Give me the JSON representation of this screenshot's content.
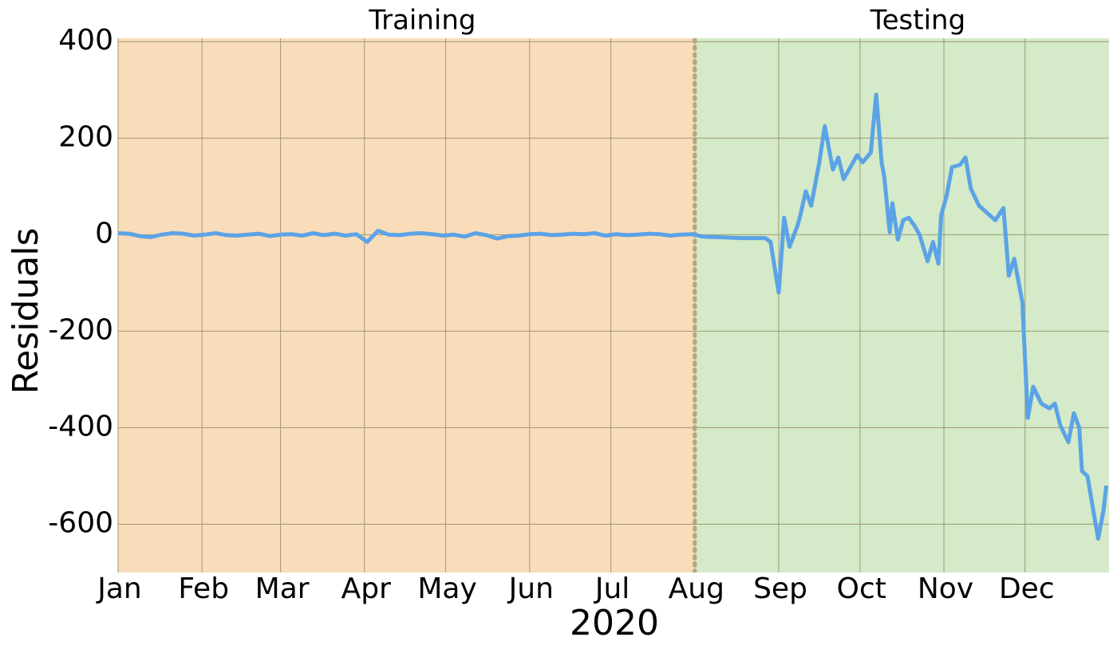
{
  "chart_data": {
    "type": "line",
    "xlabel": "2020",
    "ylabel": "Residuals",
    "xlim": [
      0,
      366
    ],
    "ylim": [
      -700,
      407
    ],
    "xticks": [
      {
        "value": 0,
        "label": "Jan"
      },
      {
        "value": 31,
        "label": "Feb"
      },
      {
        "value": 60,
        "label": "Mar"
      },
      {
        "value": 91,
        "label": "Apr"
      },
      {
        "value": 121,
        "label": "May"
      },
      {
        "value": 152,
        "label": "Jun"
      },
      {
        "value": 182,
        "label": "Jul"
      },
      {
        "value": 213,
        "label": "Aug"
      },
      {
        "value": 244,
        "label": "Sep"
      },
      {
        "value": 274,
        "label": "Oct"
      },
      {
        "value": 305,
        "label": "Nov"
      },
      {
        "value": 335,
        "label": "Dec"
      }
    ],
    "yticks": [
      400,
      200,
      0,
      -200,
      -400,
      -600
    ],
    "grid": true,
    "regions": [
      {
        "label": "Training",
        "range": [
          0,
          213
        ],
        "color": "#f9dcb9"
      },
      {
        "label": "Testing",
        "range": [
          213,
          366
        ],
        "color": "#d4eac8"
      }
    ],
    "split": 213,
    "series": [
      {
        "color": "#5ba3e6",
        "x": [
          0,
          4,
          8,
          12,
          16,
          20,
          24,
          28,
          32,
          36,
          40,
          44,
          48,
          52,
          56,
          60,
          64,
          68,
          72,
          76,
          80,
          84,
          88,
          92,
          96,
          100,
          104,
          108,
          112,
          116,
          120,
          124,
          128,
          132,
          136,
          140,
          144,
          148,
          152,
          156,
          160,
          164,
          168,
          172,
          176,
          180,
          184,
          188,
          192,
          196,
          200,
          204,
          208,
          212,
          216,
          221,
          230,
          239,
          241,
          244,
          246,
          248,
          251,
          252,
          254,
          256,
          259,
          261,
          264,
          266,
          268,
          273,
          275,
          278,
          280,
          282,
          283,
          285,
          286,
          288,
          290,
          292,
          294,
          296,
          299,
          301,
          303,
          304,
          306,
          308,
          311,
          313,
          315,
          318,
          321,
          324,
          327,
          329,
          331,
          334,
          336,
          338,
          341,
          344,
          346,
          348,
          351,
          353,
          355,
          356,
          358,
          362,
          364,
          365
        ],
        "values": [
          3,
          2,
          -3,
          -5,
          0,
          3,
          2,
          -2,
          0,
          3,
          -1,
          -2,
          0,
          2,
          -3,
          0,
          1,
          -2,
          3,
          -1,
          2,
          -2,
          1,
          -15,
          8,
          0,
          -1,
          2,
          3,
          1,
          -2,
          0,
          -4,
          3,
          -1,
          -8,
          -3,
          -2,
          1,
          2,
          -1,
          0,
          2,
          1,
          3,
          -2,
          1,
          -1,
          0,
          2,
          1,
          -2,
          0,
          1,
          -4,
          -5,
          -7,
          -7,
          -15,
          -120,
          35,
          -25,
          20,
          40,
          90,
          60,
          150,
          225,
          135,
          160,
          115,
          165,
          150,
          170,
          290,
          150,
          120,
          5,
          65,
          -10,
          30,
          35,
          20,
          0,
          -55,
          -15,
          -60,
          40,
          80,
          140,
          145,
          160,
          95,
          60,
          45,
          30,
          55,
          -85,
          -50,
          -140,
          -380,
          -315,
          -350,
          -360,
          -350,
          -395,
          -430,
          -370,
          -400,
          -490,
          -500,
          -630,
          -570,
          -520
        ]
      }
    ]
  }
}
